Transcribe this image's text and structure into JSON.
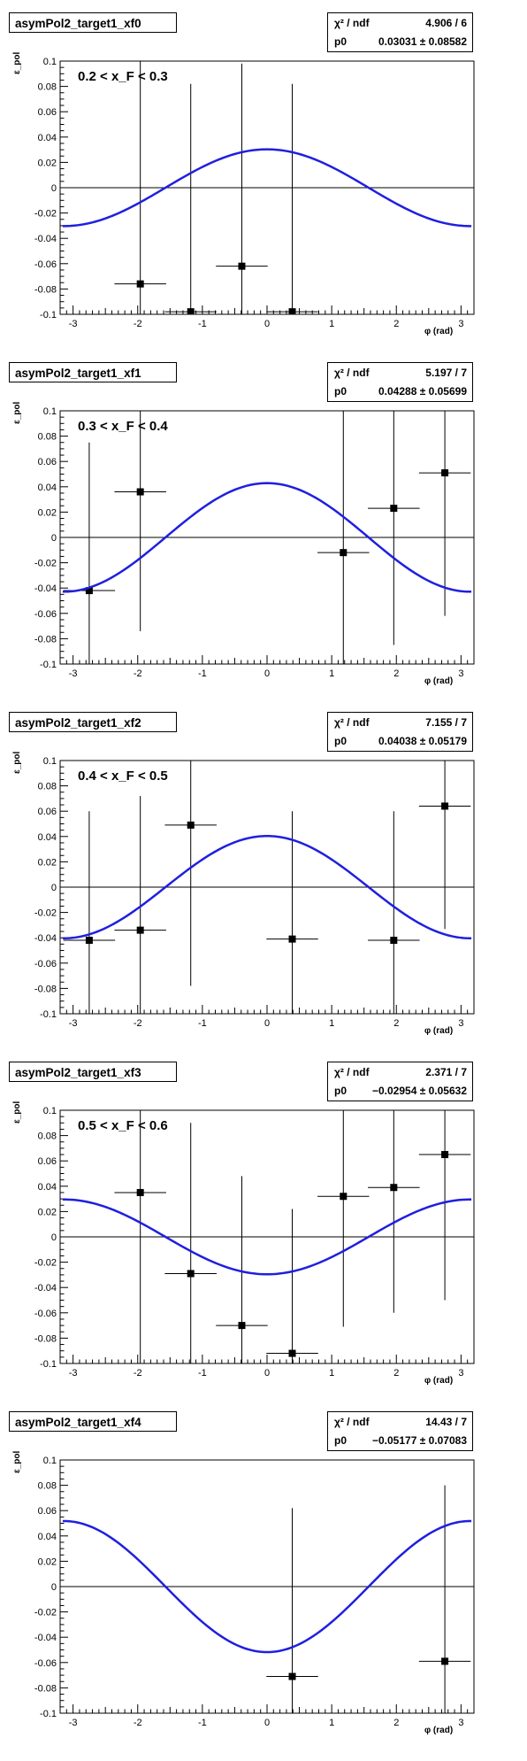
{
  "axis": {
    "xlim": [
      -3.2,
      3.2
    ],
    "ylim": [
      -0.1,
      0.1
    ],
    "xticks": [
      "-3",
      "-2",
      "-1",
      "0",
      "1",
      "2",
      "3"
    ],
    "yticks": [
      "0.1",
      "0.08",
      "0.06",
      "0.04",
      "0.02",
      "0",
      "-0.02",
      "-0.04",
      "-0.06",
      "-0.08",
      "-0.1"
    ],
    "xlabel": "φ (rad)",
    "ylabel": "ε_pol"
  },
  "chart_data": [
    {
      "type": "scatter",
      "title": "asymPol2_target1_xf0",
      "range_label": "0.2 < x_F < 0.3",
      "stats": {
        "chi2_label": "χ² / ndf",
        "chi2": "4.906 / 6",
        "p0_label": "p0",
        "p0": "0.03031 ± 0.08582"
      },
      "fit": {
        "p0": 0.03031,
        "function": "p0*cos(phi)"
      },
      "points": [
        {
          "x": -1.96,
          "y": -0.076,
          "xerr": 0.4,
          "yerr": 0.18
        },
        {
          "x": -1.18,
          "y": -0.098,
          "xerr": 0.4,
          "yerr": 0.18
        },
        {
          "x": -0.39,
          "y": -0.062,
          "xerr": 0.4,
          "yerr": 0.16
        },
        {
          "x": 0.39,
          "y": -0.098,
          "xerr": 0.4,
          "yerr": 0.18
        }
      ]
    },
    {
      "type": "scatter",
      "title": "asymPol2_target1_xf1",
      "range_label": "0.3 < x_F < 0.4",
      "stats": {
        "chi2_label": "χ² / ndf",
        "chi2": "5.197 / 7",
        "p0_label": "p0",
        "p0": "0.04288 ± 0.05699"
      },
      "fit": {
        "p0": 0.04288,
        "function": "p0*cos(phi)"
      },
      "points": [
        {
          "x": -2.75,
          "y": -0.042,
          "xerr": 0.4,
          "yerr": 0.117
        },
        {
          "x": -1.96,
          "y": 0.036,
          "xerr": 0.4,
          "yerr": 0.11
        },
        {
          "x": 1.18,
          "y": -0.012,
          "xerr": 0.4,
          "yerr": 0.115
        },
        {
          "x": 1.96,
          "y": 0.023,
          "xerr": 0.4,
          "yerr": 0.108
        },
        {
          "x": 2.75,
          "y": 0.051,
          "xerr": 0.4,
          "yerr": 0.113
        }
      ]
    },
    {
      "type": "scatter",
      "title": "asymPol2_target1_xf2",
      "range_label": "0.4 < x_F < 0.5",
      "stats": {
        "chi2_label": "χ² / ndf",
        "chi2": "7.155 / 7",
        "p0_label": "p0",
        "p0": "0.04038 ± 0.05179"
      },
      "fit": {
        "p0": 0.04038,
        "function": "p0*cos(phi)"
      },
      "points": [
        {
          "x": -2.75,
          "y": -0.042,
          "xerr": 0.4,
          "yerr": 0.102
        },
        {
          "x": -1.96,
          "y": -0.034,
          "xerr": 0.4,
          "yerr": 0.106
        },
        {
          "x": -1.18,
          "y": 0.049,
          "xerr": 0.4,
          "yerr": 0.127
        },
        {
          "x": 0.39,
          "y": -0.041,
          "xerr": 0.4,
          "yerr": 0.101
        },
        {
          "x": 1.96,
          "y": -0.042,
          "xerr": 0.4,
          "yerr": 0.102
        },
        {
          "x": 2.75,
          "y": 0.064,
          "xerr": 0.4,
          "yerr": 0.097
        }
      ]
    },
    {
      "type": "scatter",
      "title": "asymPol2_target1_xf3",
      "range_label": "0.5 < x_F < 0.6",
      "stats": {
        "chi2_label": "χ² / ndf",
        "chi2": "2.371 / 7",
        "p0_label": "p0",
        "p0": "−0.02954 ± 0.05632"
      },
      "fit": {
        "p0": -0.02954,
        "function": "p0*cos(phi)"
      },
      "points": [
        {
          "x": -1.96,
          "y": 0.035,
          "xerr": 0.4,
          "yerr": 0.136
        },
        {
          "x": -1.18,
          "y": -0.029,
          "xerr": 0.4,
          "yerr": 0.119
        },
        {
          "x": -0.39,
          "y": -0.07,
          "xerr": 0.4,
          "yerr": 0.118
        },
        {
          "x": 0.39,
          "y": -0.092,
          "xerr": 0.4,
          "yerr": 0.114
        },
        {
          "x": 1.18,
          "y": 0.032,
          "xerr": 0.4,
          "yerr": 0.103
        },
        {
          "x": 1.96,
          "y": 0.039,
          "xerr": 0.4,
          "yerr": 0.099
        },
        {
          "x": 2.75,
          "y": 0.065,
          "xerr": 0.4,
          "yerr": 0.115
        }
      ]
    },
    {
      "type": "scatter",
      "title": "asymPol2_target1_xf4",
      "range_label": "",
      "stats": {
        "chi2_label": "χ² / ndf",
        "chi2": "14.43 / 7",
        "p0_label": "p0",
        "p0": "−0.05177 ± 0.07083"
      },
      "fit": {
        "p0": -0.05177,
        "function": "p0*cos(phi)"
      },
      "points": [
        {
          "x": 0.39,
          "y": -0.071,
          "xerr": 0.4,
          "yerr": 0.133
        },
        {
          "x": 2.75,
          "y": -0.059,
          "xerr": 0.4,
          "yerr": 0.139
        }
      ]
    }
  ],
  "colors": {
    "fit": "#1f1fe0",
    "marker": "#000000",
    "axis": "#000000"
  }
}
